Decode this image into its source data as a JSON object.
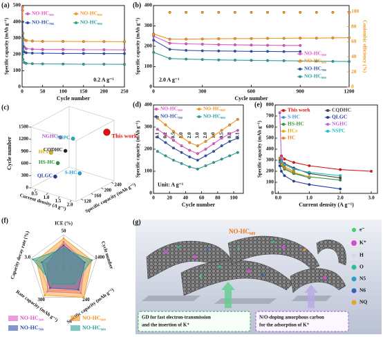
{
  "chart_data": [
    {
      "type": "line",
      "label": "(a)",
      "xlabel": "Cycle number",
      "ylabel": "Specific capacity (mAh g⁻¹)",
      "annotation": "0.2 A g⁻¹",
      "x": [
        1,
        2,
        5,
        10,
        25,
        50,
        100,
        150,
        200,
        250
      ],
      "xlim": [
        0,
        250
      ],
      "xticks": [
        0,
        50,
        100,
        150,
        200,
        250
      ],
      "ylim": [
        0,
        500
      ],
      "yticks": [
        0,
        100,
        200,
        300,
        400,
        500
      ],
      "series": [
        {
          "name": "NO-HC₅₀₀",
          "color": "#e056c8",
          "values": [
            470,
            300,
            245,
            235,
            232,
            230,
            230,
            229,
            229,
            228
          ]
        },
        {
          "name": "NO-HC₆₀₀",
          "color": "#f7941d",
          "values": [
            490,
            330,
            290,
            285,
            282,
            280,
            280,
            279,
            279,
            278
          ]
        },
        {
          "name": "NO-HC₇₀₀",
          "color": "#2e4fb0",
          "values": [
            400,
            250,
            215,
            210,
            208,
            207,
            206,
            206,
            205,
            205
          ]
        },
        {
          "name": "NO-HC₉₀₀",
          "color": "#2aa198",
          "values": [
            300,
            170,
            150,
            145,
            143,
            142,
            141,
            140,
            140,
            139
          ]
        }
      ]
    },
    {
      "type": "line",
      "label": "(b)",
      "xlabel": "Cycle number",
      "ylabel": "Specific capacity (mAh g⁻¹)",
      "y2label": "Coulombic efficiency (%)",
      "annotation": "2.0 A g⁻¹",
      "x": [
        1,
        100,
        200,
        300,
        400,
        500,
        600,
        700,
        800,
        900,
        1000,
        1100,
        1200
      ],
      "xlim": [
        0,
        1200
      ],
      "xticks": [
        0,
        300,
        600,
        900,
        1200
      ],
      "ylim": [
        0,
        400
      ],
      "yticks": [
        0,
        100,
        200,
        300,
        400
      ],
      "y2lim": [
        0,
        108
      ],
      "y2ticks": [
        0,
        20,
        40,
        60,
        80,
        100
      ],
      "series": [
        {
          "name": "NO-HC₅₀₀",
          "color": "#e056c8",
          "values": [
            250,
            215,
            212,
            210,
            208,
            207,
            206,
            205,
            204,
            204,
            null,
            null,
            null
          ]
        },
        {
          "name": "NO-HC₆₀₀",
          "color": "#f7941d",
          "values": [
            260,
            235,
            235,
            236,
            237,
            238,
            238,
            239,
            239,
            240,
            240,
            241,
            242
          ]
        },
        {
          "name": "NO-HC₇₀₀",
          "color": "#2e4fb0",
          "values": [
            230,
            185,
            180,
            178,
            177,
            176,
            175,
            175,
            174,
            174,
            null,
            null,
            null
          ]
        },
        {
          "name": "NO-HC₉₀₀",
          "color": "#2aa198",
          "values": [
            170,
            140,
            137,
            135,
            133,
            132,
            131,
            130,
            129,
            128,
            127,
            126,
            125
          ]
        },
        {
          "color": "#f7941d",
          "axis": "y2",
          "style": "markers",
          "values": [
            70,
            99,
            99,
            99,
            99,
            99,
            99,
            99,
            99,
            99,
            99,
            99,
            99
          ]
        }
      ]
    },
    {
      "type": "scatter3d",
      "label": "(c)",
      "xlabel": "Current density (A g⁻¹)",
      "ylabel": "Specific capacity (mAh g⁻¹)",
      "zlabel": "Cycle number",
      "xlim": [
        0.3,
        2.2
      ],
      "xticks": [
        0.5,
        {
          "value": 1,
          "label": "1.0"
        },
        1.5,
        {
          "value": 2,
          "label": "2.0"
        }
      ],
      "ylim": [
        100,
        250
      ],
      "yticks": [
        120,
        160,
        200,
        240
      ],
      "zlim": [
        0,
        1500
      ],
      "zticks": [
        0,
        300,
        600,
        900,
        1200,
        1500
      ],
      "labels": [
        "This work",
        "NGHC",
        "NSPC",
        "CQDHC",
        "HCs",
        "HS-HC",
        "QLGC",
        "S-HC"
      ],
      "colors": [
        "#e01010",
        "#b050d0",
        "#20b0c0",
        "#202020",
        "#e0b000",
        "#2a9a2a",
        "#2040a0",
        "#20a0e0"
      ],
      "x": [
        2.0,
        1.0,
        1.0,
        1.0,
        0.5,
        1.0,
        1.0,
        1.5
      ],
      "y": [
        240,
        150,
        200,
        170,
        160,
        140,
        130,
        180
      ],
      "z": [
        1200,
        1200,
        1000,
        800,
        700,
        600,
        300,
        300
      ]
    },
    {
      "type": "line",
      "label": "(d)",
      "xlabel": "Cycle number",
      "ylabel": "Specific capacity (mAh g⁻¹)",
      "annotation": "Unit: A g⁻¹",
      "x": [
        5,
        15,
        25,
        35,
        45,
        55,
        65,
        75,
        85,
        95,
        105
      ],
      "rate_labels": [
        "0.1",
        "0.2",
        "0.5",
        "1.0",
        "2.0",
        "3.0",
        "2.0",
        "1.0",
        "0.5",
        "0.2",
        "0.1"
      ],
      "xlim": [
        0,
        112
      ],
      "xticks": [
        0,
        20,
        40,
        60,
        80,
        100
      ],
      "ylim": [
        0,
        400
      ],
      "yticks": [
        0,
        100,
        200,
        300,
        400
      ],
      "series": [
        {
          "name": "NO-HC₅₀₀",
          "color": "#e056c8",
          "values": [
            290,
            265,
            240,
            215,
            195,
            180,
            200,
            225,
            250,
            270,
            285
          ]
        },
        {
          "name": "NO-HC₆₀₀",
          "color": "#f7941d",
          "values": [
            340,
            310,
            280,
            255,
            230,
            215,
            235,
            260,
            285,
            310,
            335
          ]
        },
        {
          "name": "NO-HC₇₀₀",
          "color": "#2e4fb0",
          "values": [
            255,
            230,
            205,
            185,
            165,
            150,
            170,
            190,
            215,
            235,
            250
          ]
        },
        {
          "name": "NO-HC₉₀₀",
          "color": "#2aa198",
          "values": [
            190,
            170,
            150,
            135,
            120,
            110,
            125,
            140,
            155,
            170,
            185
          ]
        }
      ]
    },
    {
      "type": "line",
      "label": "(e)",
      "xlabel": "Current density (A g⁻¹)",
      "ylabel": "Specific capacity (mAh g⁻¹)",
      "xlim": [
        -0.1,
        3.2
      ],
      "xticks": [
        {
          "value": 0,
          "label": "0.0"
        },
        {
          "value": 1,
          "label": "1.0"
        },
        {
          "value": 2,
          "label": "2.0"
        },
        {
          "value": 3,
          "label": "3.0"
        }
      ],
      "ylim": [
        0,
        800
      ],
      "yticks": [
        0,
        100,
        200,
        300,
        400,
        500,
        600,
        700,
        800
      ],
      "series": [
        {
          "name": "This work",
          "color": "#e01010",
          "x": [
            0.1,
            0.2,
            0.5,
            1.0,
            2.0,
            3.0
          ],
          "values": [
            340,
            310,
            280,
            250,
            215,
            200
          ]
        },
        {
          "name": "S-HC",
          "color": "#4a90d0",
          "x": [
            0.05,
            0.1,
            0.2,
            0.5,
            1.0
          ],
          "values": [
            280,
            250,
            220,
            180,
            140
          ]
        },
        {
          "name": "HS-HC",
          "color": "#2a9a2a",
          "x": [
            0.05,
            0.1,
            0.2,
            0.5,
            1.0,
            2.0
          ],
          "values": [
            300,
            260,
            220,
            180,
            150,
            120
          ]
        },
        {
          "name": "HCs",
          "color": "#e0b000",
          "x": [
            0.1,
            0.2,
            0.5,
            1.0
          ],
          "values": [
            260,
            230,
            190,
            150
          ]
        },
        {
          "name": "HC",
          "color": "#f08020",
          "x": [
            0.05,
            0.1,
            0.2,
            0.5
          ],
          "values": [
            320,
            280,
            240,
            200
          ]
        },
        {
          "name": "CQDHC",
          "color": "#404040",
          "x": [
            0.1,
            0.2,
            0.5,
            1.0,
            2.0
          ],
          "values": [
            300,
            270,
            230,
            180,
            140
          ]
        },
        {
          "name": "QLGC",
          "color": "#2040a0",
          "x": [
            0.05,
            0.1,
            0.2,
            0.5,
            1.0,
            2.0
          ],
          "values": [
            250,
            200,
            160,
            110,
            80,
            40
          ]
        },
        {
          "name": "NGHC",
          "color": "#c060e0",
          "x": [
            0.05,
            0.1,
            0.2
          ],
          "values": [
            730,
            310,
            260
          ]
        },
        {
          "name": "NSPC",
          "color": "#20c0c0",
          "x": [
            0.1,
            0.2,
            0.5,
            1.0,
            2.0
          ],
          "values": [
            290,
            260,
            220,
            190,
            160
          ]
        }
      ]
    },
    {
      "type": "radar",
      "label": "(f)",
      "axes": [
        "ICE (%)",
        "Cycle number",
        "Specific capacity (mAh g⁻¹)",
        "Rate capacity (mAh g⁻¹)",
        "Capacity decay rate (%)"
      ],
      "axis_max": [
        50,
        1400,
        240,
        300,
        {
          "value": 3,
          "label": "3.0"
        }
      ],
      "series": [
        {
          "name": "NO-HC₅₀₀",
          "color": "#e056c8",
          "values": [
            40,
            900,
            205,
            240,
            1.5
          ]
        },
        {
          "name": "NO-HC₆₀₀",
          "color": "#f7941d",
          "values": [
            45,
            1200,
            240,
            280,
            2.5
          ]
        },
        {
          "name": "NO-HC₇₀₀",
          "color": "#2e4fb0",
          "values": [
            35,
            900,
            175,
            200,
            2.0
          ]
        },
        {
          "name": "NO-HC₉₀₀",
          "color": "#2aa198",
          "values": [
            30,
            1200,
            125,
            160,
            2.8
          ]
        }
      ]
    }
  ],
  "diagram": {
    "label": "(g)",
    "title": "NO-HC₆₀₀",
    "legend": [
      "e⁻",
      "K⁺",
      "H",
      "O",
      "N5",
      "N6",
      "NQ"
    ],
    "box_left": [
      "GD for fast electron-transmission",
      "and the insertion of K⁺"
    ],
    "box_right": [
      "N/O-doping amorphous carbon",
      "for the adsorption of K⁺"
    ]
  }
}
